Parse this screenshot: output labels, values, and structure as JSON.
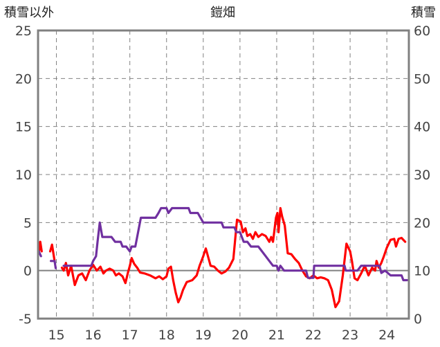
{
  "chart_data": {
    "type": "line",
    "title": "鎧畑",
    "ylabel_left": "積雪以外",
    "ylabel_right": "積雪",
    "ylim_left": [
      -5,
      25
    ],
    "ylim_right": [
      0,
      60
    ],
    "y_ticks_left": [
      -5,
      0,
      5,
      10,
      15,
      20,
      25
    ],
    "y_ticks_right": [
      0,
      10,
      20,
      30,
      40,
      50,
      60
    ],
    "xlim": [
      14.5,
      24.6
    ],
    "x_ticks": [
      15,
      16,
      17,
      18,
      19,
      20,
      21,
      22,
      23,
      24
    ],
    "grid": true,
    "colors": {
      "temperature": "#ff0000",
      "snow": "#7030a0",
      "frame": "#808080",
      "grid": "#808080",
      "zero_line": "#808080"
    },
    "series": [
      {
        "key": "temperature",
        "axis": "left",
        "points": [
          [
            14.52,
            1.8
          ],
          [
            14.56,
            3.0
          ],
          [
            14.6,
            2.0
          ],
          null,
          [
            14.83,
            2.0
          ],
          [
            14.88,
            2.7
          ],
          [
            14.95,
            1.0
          ],
          null,
          [
            15.15,
            0.3
          ],
          [
            15.2,
            0.0
          ],
          [
            15.26,
            0.8
          ],
          [
            15.32,
            -0.5
          ],
          [
            15.4,
            0.5
          ],
          [
            15.5,
            -1.5
          ],
          [
            15.6,
            -0.5
          ],
          [
            15.7,
            -0.3
          ],
          [
            15.8,
            -1.0
          ],
          [
            15.9,
            0.0
          ],
          [
            16.0,
            0.6
          ],
          [
            16.1,
            0.0
          ],
          [
            16.2,
            0.4
          ],
          [
            16.28,
            -0.3
          ],
          [
            16.35,
            0.0
          ],
          [
            16.45,
            0.2
          ],
          [
            16.55,
            0.0
          ],
          [
            16.62,
            -0.5
          ],
          [
            16.7,
            -0.3
          ],
          [
            16.8,
            -0.6
          ],
          [
            16.88,
            -1.3
          ],
          [
            16.95,
            -0.2
          ],
          [
            17.0,
            0.5
          ],
          [
            17.05,
            1.3
          ],
          [
            17.12,
            0.7
          ],
          [
            17.2,
            0.3
          ],
          [
            17.28,
            -0.2
          ],
          [
            17.4,
            -0.3
          ],
          [
            17.55,
            -0.5
          ],
          [
            17.7,
            -0.8
          ],
          [
            17.8,
            -0.6
          ],
          [
            17.9,
            -0.9
          ],
          [
            18.0,
            -0.6
          ],
          [
            18.05,
            0.2
          ],
          [
            18.12,
            0.4
          ],
          [
            18.18,
            -1.0
          ],
          [
            18.25,
            -2.3
          ],
          [
            18.32,
            -3.3
          ],
          [
            18.38,
            -2.8
          ],
          [
            18.45,
            -2.0
          ],
          [
            18.55,
            -1.2
          ],
          [
            18.7,
            -1.0
          ],
          [
            18.82,
            -0.5
          ],
          [
            18.9,
            0.5
          ],
          [
            19.0,
            1.5
          ],
          [
            19.07,
            2.3
          ],
          [
            19.12,
            1.6
          ],
          [
            19.2,
            0.5
          ],
          [
            19.3,
            0.4
          ],
          [
            19.4,
            0.0
          ],
          [
            19.5,
            -0.3
          ],
          [
            19.6,
            -0.1
          ],
          [
            19.7,
            0.3
          ],
          [
            19.82,
            1.2
          ],
          [
            19.92,
            5.3
          ],
          [
            20.02,
            5.1
          ],
          [
            20.08,
            4.0
          ],
          [
            20.15,
            4.4
          ],
          [
            20.2,
            3.6
          ],
          [
            20.28,
            3.8
          ],
          [
            20.35,
            3.3
          ],
          [
            20.42,
            4.0
          ],
          [
            20.5,
            3.5
          ],
          [
            20.6,
            3.8
          ],
          [
            20.7,
            3.6
          ],
          [
            20.8,
            3.0
          ],
          [
            20.85,
            3.5
          ],
          [
            20.9,
            3.0
          ],
          [
            20.98,
            5.5
          ],
          [
            21.02,
            6.0
          ],
          [
            21.05,
            4.0
          ],
          [
            21.1,
            6.5
          ],
          [
            21.15,
            5.6
          ],
          [
            21.22,
            4.7
          ],
          [
            21.3,
            1.8
          ],
          [
            21.4,
            1.7
          ],
          [
            21.5,
            1.2
          ],
          [
            21.6,
            0.8
          ],
          [
            21.7,
            0.0
          ],
          [
            21.8,
            -0.6
          ],
          [
            21.9,
            -0.8
          ],
          [
            22.0,
            -0.5
          ],
          [
            22.1,
            -0.8
          ],
          [
            22.2,
            -0.7
          ],
          [
            22.3,
            -0.8
          ],
          [
            22.4,
            -1.0
          ],
          [
            22.5,
            -2.0
          ],
          [
            22.6,
            -3.8
          ],
          [
            22.7,
            -3.2
          ],
          [
            22.8,
            -0.5
          ],
          [
            22.9,
            2.8
          ],
          [
            23.0,
            2.0
          ],
          [
            23.05,
            1.0
          ],
          [
            23.12,
            -0.8
          ],
          [
            23.2,
            -1.0
          ],
          [
            23.3,
            -0.3
          ],
          [
            23.4,
            0.5
          ],
          [
            23.5,
            -0.5
          ],
          [
            23.6,
            0.3
          ],
          [
            23.68,
            0.0
          ],
          [
            23.72,
            1.0
          ],
          [
            23.78,
            0.3
          ],
          [
            23.85,
            0.8
          ],
          [
            23.92,
            1.5
          ],
          [
            24.0,
            2.4
          ],
          [
            24.1,
            3.2
          ],
          [
            24.2,
            3.3
          ],
          [
            24.25,
            2.5
          ],
          [
            24.32,
            3.3
          ],
          [
            24.4,
            3.4
          ],
          [
            24.5,
            3.0
          ]
        ]
      },
      {
        "key": "snow",
        "axis": "right",
        "points": [
          [
            14.52,
            14
          ],
          [
            14.58,
            13
          ],
          null,
          [
            14.85,
            12
          ],
          [
            14.95,
            12
          ],
          [
            14.98,
            10.5
          ],
          null,
          [
            15.2,
            11
          ],
          [
            15.5,
            11
          ],
          [
            15.8,
            11
          ],
          [
            15.95,
            11
          ],
          [
            16.0,
            12
          ],
          [
            16.08,
            13
          ],
          [
            16.12,
            16
          ],
          [
            16.18,
            20
          ],
          [
            16.25,
            17
          ],
          [
            16.5,
            17
          ],
          [
            16.6,
            16
          ],
          [
            16.75,
            16
          ],
          [
            16.8,
            15
          ],
          [
            16.9,
            15
          ],
          [
            17.0,
            14
          ],
          [
            17.05,
            15
          ],
          [
            17.15,
            15
          ],
          [
            17.3,
            21
          ],
          [
            17.45,
            21
          ],
          [
            17.7,
            21
          ],
          [
            17.78,
            22
          ],
          [
            17.85,
            23
          ],
          [
            18.0,
            23
          ],
          [
            18.05,
            22
          ],
          [
            18.15,
            23
          ],
          [
            18.5,
            23
          ],
          [
            18.6,
            23
          ],
          [
            18.65,
            22
          ],
          [
            18.85,
            22
          ],
          [
            19.0,
            20
          ],
          [
            19.1,
            20
          ],
          [
            19.5,
            20
          ],
          [
            19.55,
            19
          ],
          [
            19.85,
            19
          ],
          [
            19.9,
            18
          ],
          [
            20.0,
            18
          ],
          [
            20.05,
            17
          ],
          [
            20.1,
            16
          ],
          [
            20.2,
            16
          ],
          [
            20.3,
            15
          ],
          [
            20.5,
            15
          ],
          [
            20.6,
            14
          ],
          [
            20.8,
            12
          ],
          [
            20.9,
            11
          ],
          [
            21.0,
            11
          ],
          [
            21.05,
            10
          ],
          [
            21.1,
            11
          ],
          [
            21.2,
            10
          ],
          [
            21.5,
            10
          ],
          [
            21.8,
            10
          ],
          [
            21.85,
            8.5
          ],
          [
            22.0,
            8.5
          ],
          [
            22.02,
            11
          ],
          [
            22.1,
            11
          ],
          [
            22.2,
            11
          ],
          [
            22.6,
            11
          ],
          [
            22.85,
            11
          ],
          [
            22.88,
            10
          ],
          [
            23.0,
            10
          ],
          [
            23.2,
            10
          ],
          [
            23.3,
            11
          ],
          [
            23.5,
            11
          ],
          [
            23.8,
            11
          ],
          [
            23.85,
            9.5
          ],
          [
            23.95,
            10
          ],
          [
            24.1,
            9
          ],
          [
            24.4,
            9
          ],
          [
            24.45,
            8
          ],
          [
            24.55,
            8
          ]
        ]
      }
    ]
  }
}
